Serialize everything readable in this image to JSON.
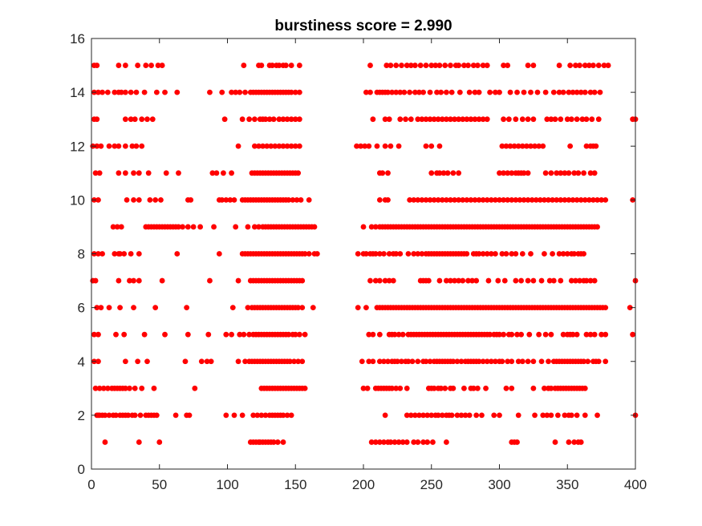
{
  "chart_data": {
    "type": "scatter",
    "title": "burstiness score = 2.990",
    "xlabel": "",
    "ylabel": "",
    "xlim": [
      0,
      400
    ],
    "ylim": [
      0,
      16
    ],
    "xticks": [
      0,
      50,
      100,
      150,
      200,
      250,
      300,
      350,
      400
    ],
    "yticks": [
      0,
      2,
      4,
      6,
      8,
      10,
      12,
      14,
      16
    ],
    "grid": false,
    "legend": "none",
    "marker_color": "#ff0000",
    "rows": [
      {
        "y": 1,
        "x": [
          10,
          35,
          50,
          117,
          119,
          121,
          123,
          124,
          126,
          128,
          130,
          132,
          134,
          137,
          141,
          206,
          209,
          212,
          215,
          218,
          220,
          223,
          226,
          229,
          232,
          237,
          240,
          244,
          247,
          251,
          261,
          309,
          311,
          313,
          341,
          351,
          355,
          358,
          360
        ]
      },
      {
        "y": 2,
        "x": [
          4,
          5,
          6,
          8,
          10,
          13,
          16,
          18,
          21,
          23,
          25,
          27,
          30,
          32,
          36,
          40,
          42,
          44,
          46,
          48,
          62,
          70,
          72,
          99,
          105,
          111,
          119,
          122,
          125,
          128,
          131,
          133,
          135,
          137,
          139,
          141,
          144,
          147,
          216,
          232,
          235,
          238,
          241,
          244,
          247,
          250,
          253,
          255,
          258,
          261,
          263,
          265,
          269,
          272,
          275,
          278,
          283,
          287,
          296,
          300,
          314,
          326,
          332,
          335,
          338,
          343,
          348,
          351,
          353,
          357,
          363,
          372,
          400
        ]
      },
      {
        "y": 3,
        "x": [
          3,
          6,
          9,
          12,
          15,
          17,
          19,
          21,
          23,
          25,
          28,
          32,
          37,
          46,
          76,
          125,
          127,
          129,
          131,
          133,
          135,
          137,
          139,
          141,
          143,
          145,
          147,
          149,
          151,
          153,
          155,
          157,
          200,
          203,
          209,
          211,
          213,
          215,
          217,
          219,
          221,
          224,
          227,
          232,
          248,
          250,
          252,
          255,
          257,
          260,
          264,
          266,
          274,
          279,
          281,
          284,
          290,
          305,
          309,
          325,
          333,
          336,
          338,
          341,
          343,
          345,
          347,
          349,
          351,
          353,
          355,
          357,
          359,
          361,
          363
        ]
      },
      {
        "y": 4,
        "x": [
          2,
          5,
          25,
          34,
          41,
          69,
          81,
          85,
          88,
          108,
          113,
          116,
          118,
          120,
          122,
          124,
          126,
          128,
          130,
          132,
          134,
          136,
          138,
          140,
          142,
          144,
          146,
          149,
          152,
          155,
          199,
          204,
          207,
          212,
          215,
          218,
          221,
          223,
          225,
          228,
          231,
          233,
          236,
          240,
          244,
          246,
          249,
          252,
          254,
          256,
          258,
          260,
          262,
          264,
          266,
          269,
          272,
          275,
          277,
          279,
          281,
          283,
          285,
          288,
          291,
          294,
          297,
          300,
          302,
          306,
          309,
          314,
          317,
          321,
          325,
          331,
          336,
          340,
          342,
          344,
          346,
          348,
          350,
          352,
          354,
          356,
          358,
          360,
          362,
          365,
          369,
          371,
          373,
          378
        ]
      },
      {
        "y": 5,
        "x": [
          2,
          5,
          18,
          24,
          39,
          54,
          71,
          86,
          99,
          103,
          109,
          112,
          116,
          119,
          121,
          123,
          125,
          127,
          129,
          131,
          133,
          135,
          137,
          139,
          141,
          143,
          145,
          148,
          150,
          153,
          157,
          204,
          207,
          212,
          219,
          221,
          223,
          226,
          229,
          233,
          235,
          237,
          239,
          241,
          243,
          245,
          247,
          249,
          251,
          253,
          255,
          257,
          259,
          261,
          263,
          265,
          267,
          269,
          271,
          273,
          275,
          277,
          279,
          281,
          283,
          285,
          287,
          289,
          291,
          293,
          296,
          298,
          300,
          303,
          307,
          309,
          313,
          316,
          322,
          329,
          334,
          338,
          347,
          350,
          352,
          354,
          357,
          364,
          367,
          370,
          375,
          378,
          398
        ]
      },
      {
        "y": 6,
        "x": [
          4,
          7,
          13,
          21,
          31,
          47,
          70,
          104,
          115,
          118,
          120,
          122,
          124,
          126,
          128,
          130,
          132,
          134,
          136,
          138,
          140,
          142,
          144,
          146,
          148,
          150,
          152,
          155,
          163,
          196,
          202,
          210,
          212,
          214,
          216,
          218,
          220,
          222,
          224,
          226,
          228,
          230,
          232,
          234,
          236,
          238,
          240,
          242,
          244,
          246,
          248,
          250,
          252,
          254,
          256,
          258,
          260,
          262,
          264,
          266,
          268,
          270,
          272,
          274,
          276,
          278,
          280,
          282,
          284,
          286,
          288,
          290,
          292,
          294,
          296,
          298,
          300,
          302,
          304,
          306,
          308,
          310,
          312,
          314,
          316,
          318,
          320,
          322,
          324,
          326,
          328,
          330,
          332,
          334,
          336,
          338,
          340,
          342,
          344,
          346,
          348,
          350,
          352,
          354,
          356,
          358,
          360,
          362,
          364,
          366,
          368,
          370,
          372,
          374,
          376,
          378,
          396
        ]
      },
      {
        "y": 7,
        "x": [
          1,
          3,
          20,
          28,
          31,
          35,
          52,
          87,
          108,
          117,
          119,
          121,
          123,
          125,
          127,
          129,
          131,
          133,
          135,
          137,
          139,
          141,
          143,
          145,
          147,
          149,
          151,
          153,
          155,
          205,
          209,
          212,
          216,
          219,
          222,
          242,
          244,
          246,
          248,
          256,
          261,
          264,
          267,
          270,
          273,
          277,
          280,
          283,
          292,
          299,
          304,
          312,
          316,
          321,
          325,
          331,
          337,
          340,
          345,
          353,
          356,
          359,
          362,
          364,
          367,
          370,
          400
        ]
      },
      {
        "y": 8,
        "x": [
          2,
          5,
          8,
          17,
          20,
          21,
          24,
          29,
          35,
          63,
          94,
          111,
          113,
          115,
          117,
          119,
          121,
          123,
          125,
          127,
          129,
          131,
          133,
          135,
          137,
          139,
          141,
          143,
          145,
          147,
          149,
          151,
          153,
          155,
          157,
          160,
          164,
          166,
          196,
          200,
          202,
          205,
          207,
          209,
          212,
          215,
          219,
          222,
          224,
          227,
          233,
          237,
          240,
          243,
          246,
          248,
          250,
          252,
          254,
          256,
          258,
          260,
          262,
          264,
          266,
          268,
          270,
          272,
          274,
          276,
          281,
          283,
          285,
          288,
          291,
          294,
          297,
          302,
          305,
          309,
          312,
          317,
          323,
          333,
          339,
          344,
          347,
          350,
          353,
          355,
          358,
          360,
          362
        ]
      },
      {
        "y": 9,
        "x": [
          16,
          19,
          22,
          40,
          42,
          44,
          46,
          48,
          50,
          52,
          54,
          56,
          58,
          60,
          62,
          64,
          67,
          71,
          75,
          80,
          90,
          106,
          115,
          120,
          123,
          126,
          128,
          130,
          132,
          134,
          136,
          138,
          140,
          142,
          144,
          146,
          148,
          150,
          152,
          154,
          156,
          158,
          160,
          162,
          164,
          200,
          206,
          209,
          212,
          214,
          216,
          218,
          220,
          222,
          224,
          226,
          228,
          230,
          232,
          234,
          236,
          238,
          240,
          242,
          244,
          246,
          248,
          250,
          252,
          254,
          256,
          258,
          260,
          262,
          264,
          266,
          268,
          270,
          272,
          274,
          276,
          278,
          280,
          282,
          284,
          286,
          288,
          290,
          292,
          294,
          296,
          298,
          300,
          302,
          304,
          306,
          308,
          310,
          312,
          314,
          316,
          318,
          320,
          322,
          324,
          326,
          328,
          330,
          332,
          334,
          336,
          338,
          340,
          342,
          344,
          346,
          348,
          350,
          352,
          354,
          356,
          358,
          360,
          362,
          364,
          366,
          368,
          370,
          372
        ]
      },
      {
        "y": 10,
        "x": [
          2,
          5,
          26,
          31,
          35,
          43,
          47,
          51,
          71,
          73,
          94,
          96,
          99,
          102,
          105,
          111,
          113,
          115,
          117,
          119,
          121,
          123,
          125,
          127,
          129,
          131,
          133,
          135,
          137,
          139,
          141,
          143,
          145,
          148,
          151,
          154,
          160,
          212,
          216,
          218,
          234,
          237,
          240,
          243,
          246,
          249,
          252,
          255,
          258,
          261,
          264,
          267,
          270,
          273,
          276,
          279,
          282,
          285,
          288,
          291,
          294,
          297,
          300,
          303,
          306,
          309,
          312,
          315,
          318,
          321,
          324,
          327,
          330,
          333,
          336,
          339,
          342,
          345,
          348,
          351,
          354,
          357,
          360,
          363,
          366,
          369,
          372,
          375,
          378,
          398
        ]
      },
      {
        "y": 11,
        "x": [
          3,
          6,
          20,
          25,
          31,
          35,
          42,
          55,
          64,
          89,
          92,
          97,
          103,
          118,
          120,
          122,
          124,
          126,
          128,
          130,
          132,
          134,
          136,
          138,
          140,
          142,
          144,
          146,
          148,
          150,
          152,
          212,
          214,
          218,
          250,
          254,
          256,
          259,
          262,
          266,
          270,
          300,
          303,
          306,
          309,
          312,
          314,
          316,
          318,
          321,
          334,
          338,
          342,
          345,
          348,
          351,
          355,
          358,
          362,
          367,
          370
        ]
      },
      {
        "y": 12,
        "x": [
          1,
          4,
          7,
          13,
          17,
          20,
          25,
          30,
          33,
          37,
          108,
          120,
          123,
          126,
          129,
          132,
          135,
          138,
          141,
          144,
          147,
          150,
          153,
          195,
          198,
          201,
          204,
          210,
          216,
          220,
          226,
          246,
          250,
          256,
          302,
          305,
          308,
          311,
          314,
          317,
          320,
          323,
          326,
          329,
          332,
          352,
          364,
          367,
          369,
          371
        ]
      },
      {
        "y": 13,
        "x": [
          2,
          4,
          25,
          29,
          32,
          37,
          41,
          45,
          98,
          111,
          116,
          120,
          124,
          126,
          128,
          131,
          134,
          138,
          141,
          144,
          147,
          150,
          153,
          207,
          216,
          219,
          227,
          231,
          235,
          240,
          243,
          246,
          249,
          252,
          255,
          258,
          261,
          264,
          267,
          270,
          273,
          276,
          279,
          282,
          285,
          288,
          291,
          303,
          307,
          312,
          317,
          321,
          325,
          335,
          338,
          341,
          345,
          350,
          353,
          357,
          361,
          364,
          368,
          373,
          398,
          400
        ]
      },
      {
        "y": 14,
        "x": [
          2,
          5,
          8,
          12,
          17,
          20,
          22,
          25,
          29,
          33,
          39,
          48,
          54,
          63,
          87,
          96,
          103,
          106,
          109,
          113,
          117,
          119,
          121,
          123,
          125,
          127,
          129,
          131,
          133,
          135,
          137,
          139,
          141,
          143,
          145,
          147,
          150,
          153,
          202,
          205,
          210,
          212,
          214,
          216,
          218,
          221,
          224,
          227,
          230,
          234,
          238,
          241,
          244,
          249,
          254,
          257,
          261,
          265,
          271,
          278,
          282,
          285,
          293,
          297,
          300,
          308,
          313,
          318,
          323,
          328,
          334,
          340,
          344,
          347,
          351,
          354,
          357,
          360,
          363,
          367,
          370,
          374
        ]
      },
      {
        "y": 15,
        "x": [
          2,
          4,
          20,
          25,
          34,
          40,
          44,
          49,
          52,
          112,
          123,
          125,
          131,
          133,
          136,
          138,
          141,
          143,
          147,
          153,
          205,
          217,
          220,
          224,
          228,
          232,
          235,
          238,
          242,
          246,
          250,
          253,
          256,
          260,
          264,
          268,
          270,
          274,
          277,
          281,
          284,
          288,
          291,
          303,
          306,
          321,
          325,
          344,
          352,
          356,
          359,
          363,
          366,
          369,
          373,
          377,
          380
        ]
      }
    ]
  }
}
